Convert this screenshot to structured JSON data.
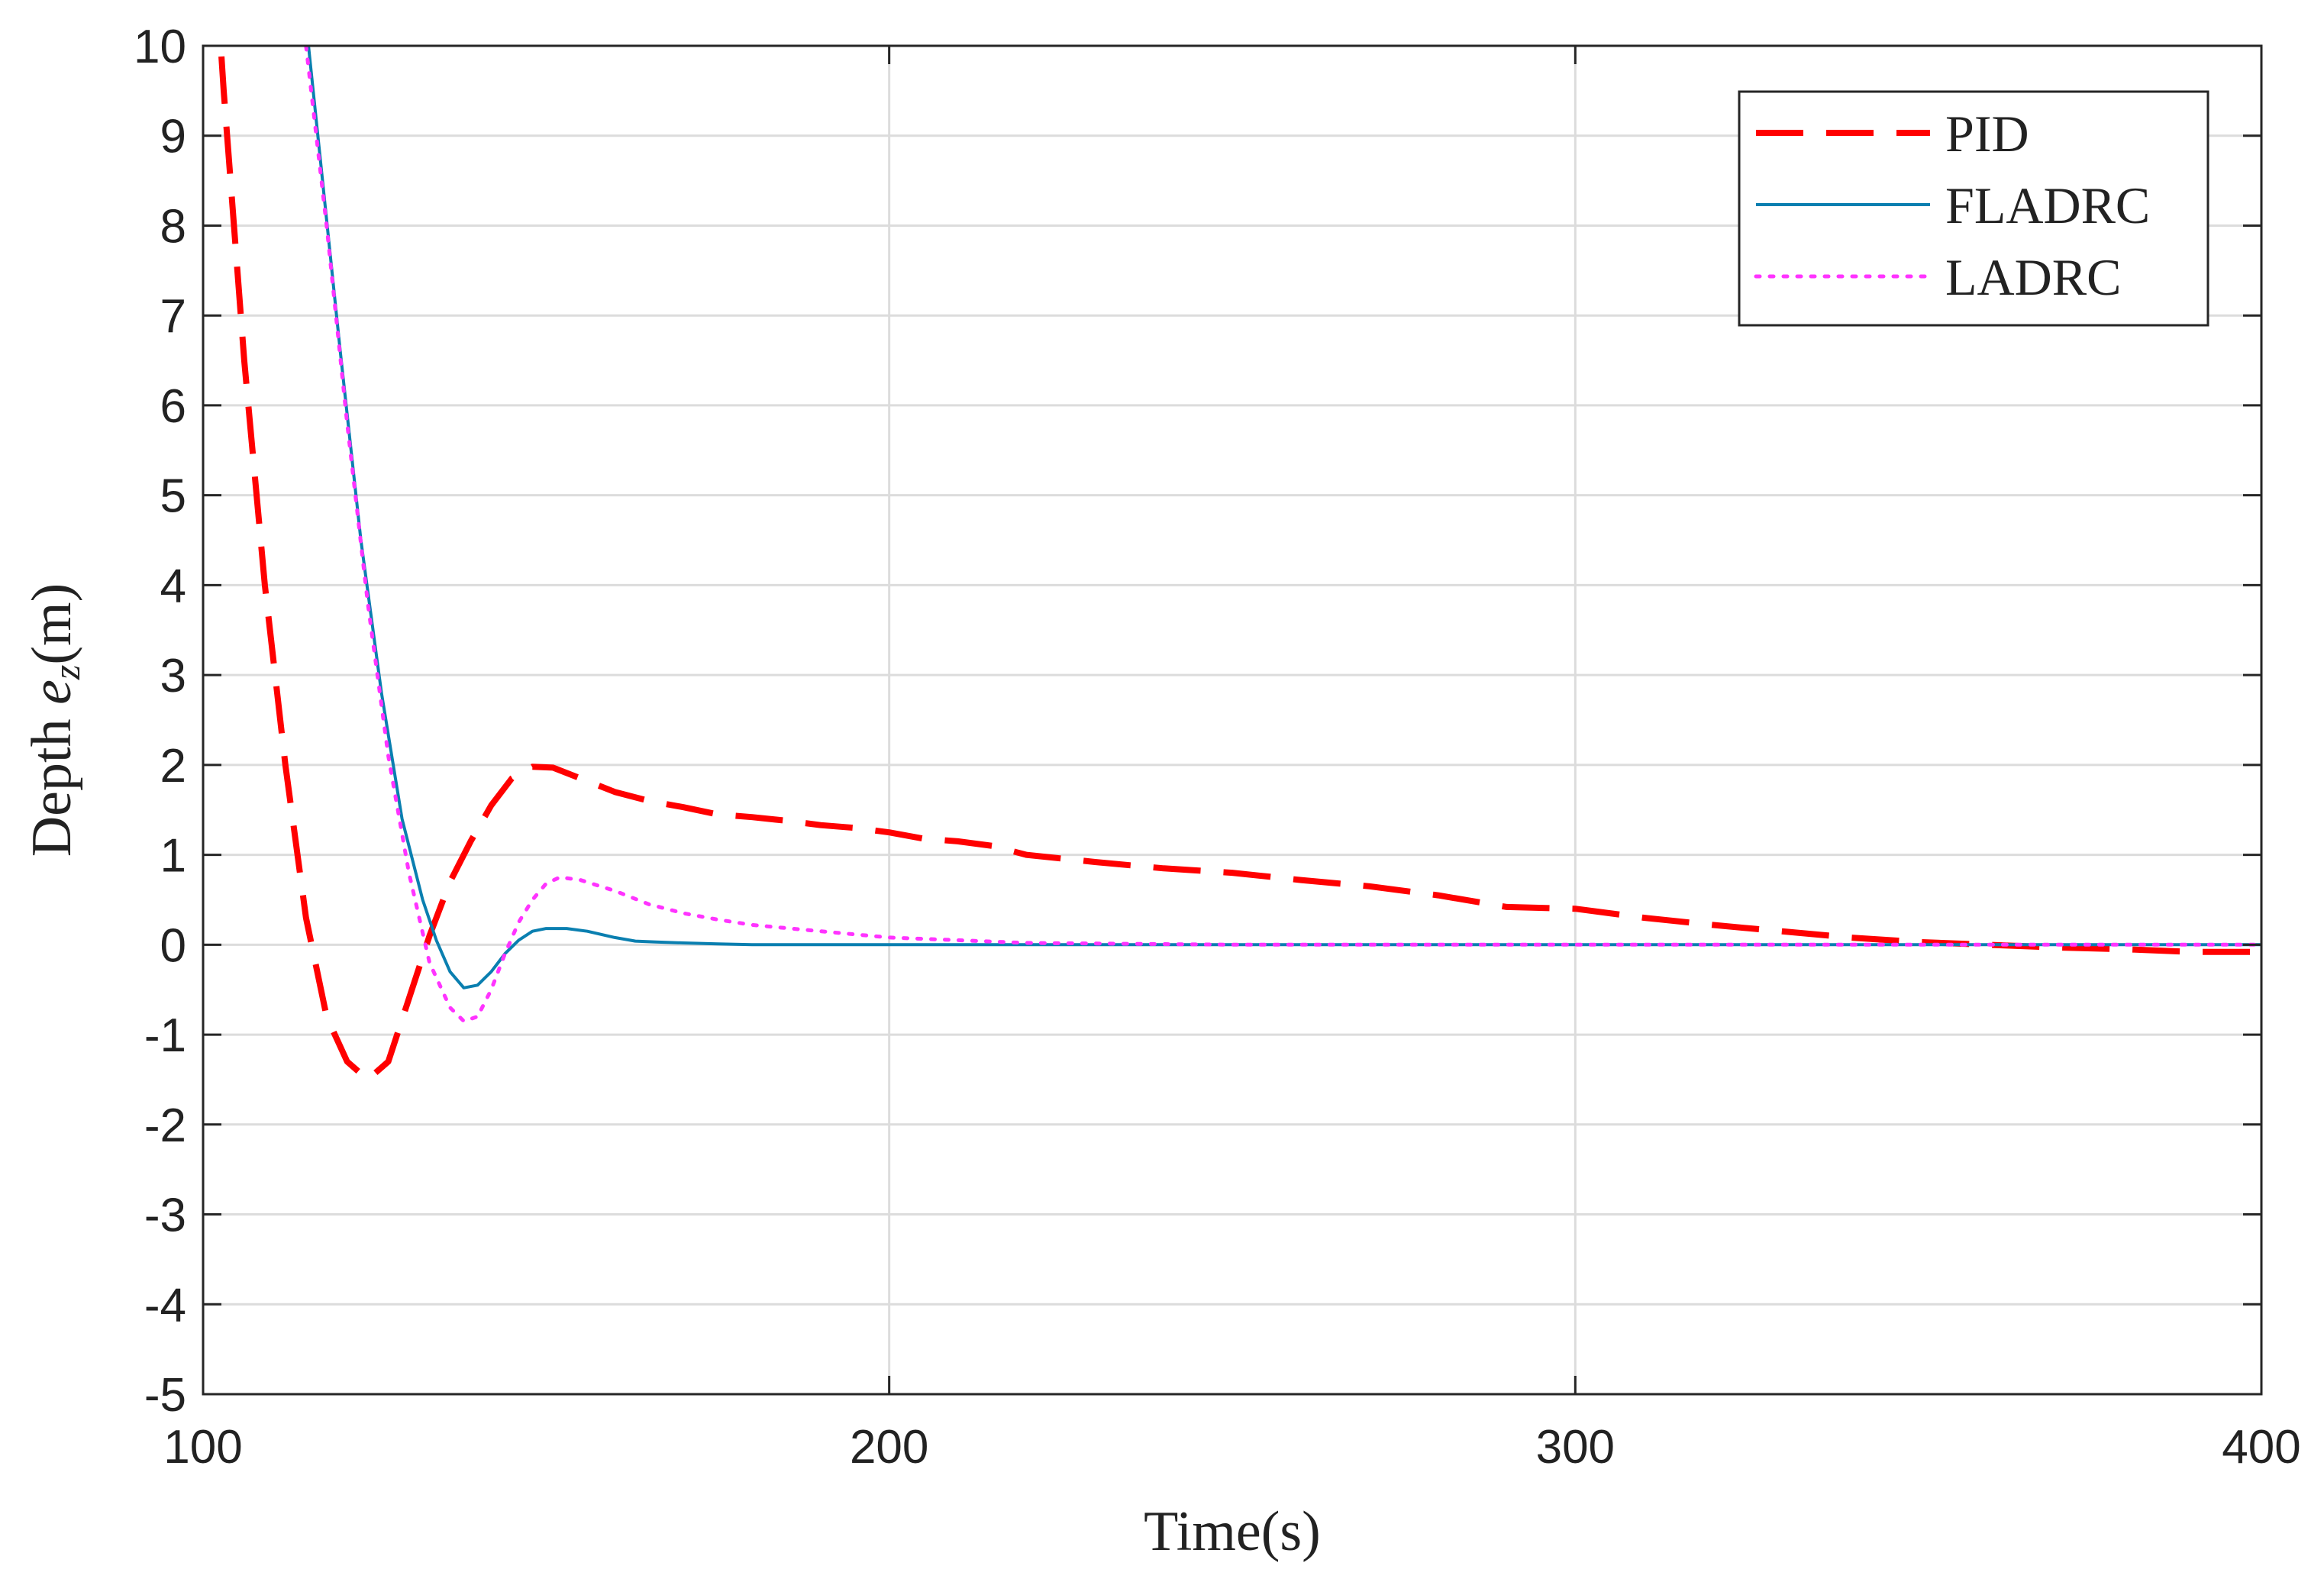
{
  "chart_data": {
    "type": "line",
    "title": "",
    "xlabel": "Time(s)",
    "ylabel": {
      "prefix": "Depth ",
      "var": "e",
      "sub": "z",
      "suffix": "(m)"
    },
    "xlim": [
      100,
      400
    ],
    "ylim": [
      -5,
      10
    ],
    "xticks": [
      100,
      200,
      300,
      400
    ],
    "yticks": [
      -5,
      -4,
      -3,
      -2,
      -1,
      0,
      1,
      2,
      3,
      4,
      5,
      6,
      7,
      8,
      9,
      10
    ],
    "grid": true,
    "legend": {
      "position": "top-right"
    },
    "series": [
      {
        "name": "PID",
        "color": "#ff0000",
        "style": "dashed",
        "x": [
          100,
          103,
          106,
          109,
          112,
          115,
          118,
          121,
          124,
          127,
          130,
          133,
          136,
          139,
          142,
          145,
          148,
          151,
          155,
          160,
          165,
          170,
          175,
          180,
          185,
          190,
          195,
          200,
          205,
          210,
          215,
          220,
          230,
          240,
          250,
          260,
          270,
          280,
          290,
          300,
          310,
          320,
          330,
          340,
          350,
          360,
          370,
          380,
          390,
          400
        ],
        "y": [
          13,
          9.5,
          6.5,
          4.0,
          2.0,
          0.3,
          -0.8,
          -1.3,
          -1.5,
          -1.3,
          -0.6,
          0.1,
          0.7,
          1.15,
          1.55,
          1.85,
          1.98,
          1.97,
          1.85,
          1.7,
          1.6,
          1.53,
          1.45,
          1.42,
          1.38,
          1.33,
          1.3,
          1.25,
          1.18,
          1.15,
          1.1,
          1.0,
          0.92,
          0.85,
          0.8,
          0.72,
          0.65,
          0.55,
          0.42,
          0.4,
          0.3,
          0.22,
          0.15,
          0.08,
          0.03,
          0.0,
          -0.03,
          -0.05,
          -0.08,
          -0.08
        ]
      },
      {
        "name": "FLADRC",
        "color": "#0a7fb0",
        "style": "solid",
        "x": [
          114,
          117,
          120,
          123,
          126,
          129,
          132,
          134,
          136,
          138,
          140,
          142,
          144,
          146,
          148,
          150,
          153,
          156,
          160,
          163,
          166,
          170,
          175,
          180,
          190,
          200,
          220,
          250,
          300,
          350,
          400
        ],
        "y": [
          11,
          8.8,
          6.6,
          4.5,
          2.8,
          1.4,
          0.5,
          0.05,
          -0.3,
          -0.48,
          -0.45,
          -0.3,
          -0.1,
          0.05,
          0.15,
          0.18,
          0.18,
          0.15,
          0.08,
          0.04,
          0.03,
          0.02,
          0.01,
          0.0,
          0.0,
          0.0,
          0.0,
          0.0,
          0.0,
          0.0,
          0.0
        ]
      },
      {
        "name": "LADRC",
        "color": "#ff33ff",
        "style": "dotted",
        "x": [
          115,
          118,
          121,
          124,
          127,
          130,
          133,
          136,
          138,
          140,
          142,
          144,
          146,
          148,
          150,
          152,
          155,
          160,
          165,
          170,
          175,
          180,
          190,
          200,
          210,
          220,
          250,
          300,
          350,
          400
        ],
        "y": [
          10,
          8.0,
          5.8,
          3.8,
          2.1,
          0.8,
          -0.2,
          -0.7,
          -0.85,
          -0.8,
          -0.5,
          -0.1,
          0.25,
          0.5,
          0.68,
          0.75,
          0.72,
          0.6,
          0.45,
          0.35,
          0.28,
          0.22,
          0.15,
          0.08,
          0.05,
          0.02,
          0.0,
          0.0,
          0.0,
          0.0
        ]
      }
    ]
  }
}
